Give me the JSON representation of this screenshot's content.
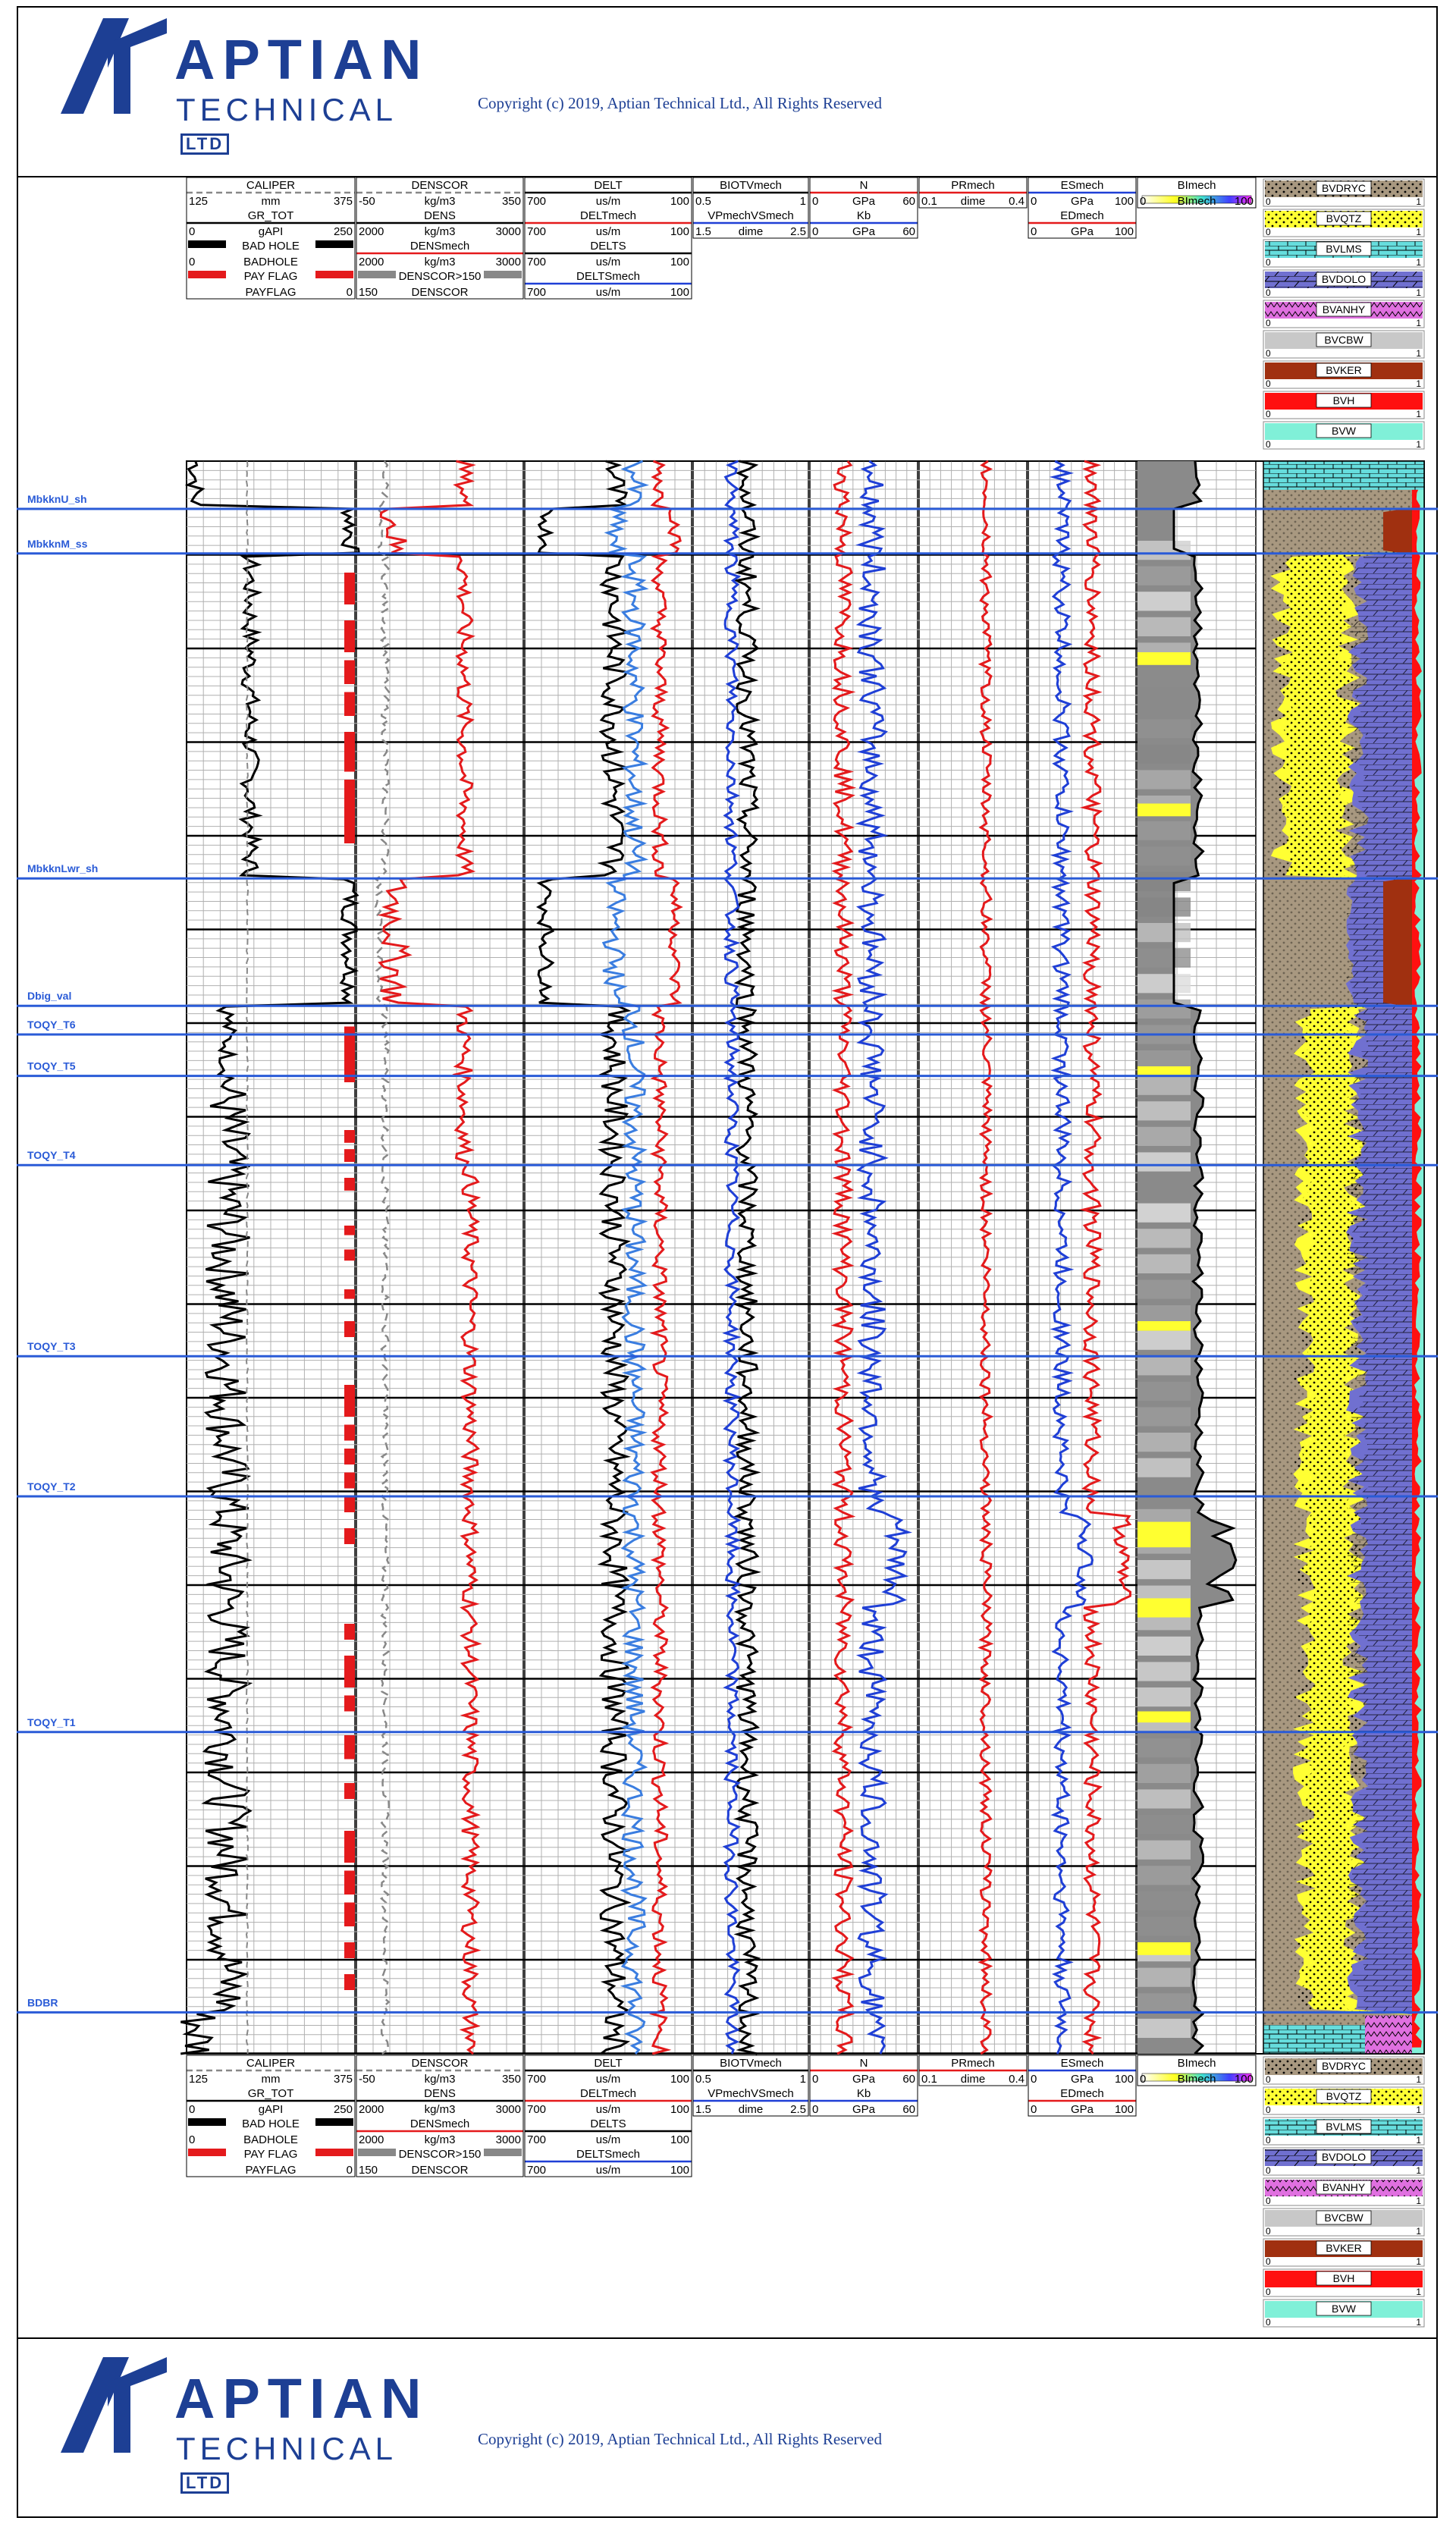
{
  "header": {
    "logo_word": "APTIAN",
    "logo_sub": "TECHNICAL",
    "logo_ltd": "LTD",
    "copyright": "Copyright (c) 2019, Aptian Technical Ltd., All Rights Reserved"
  },
  "footer": {
    "logo_word": "APTIAN",
    "logo_sub": "TECHNICAL",
    "logo_ltd": "LTD",
    "copyright": "Copyright (c) 2019, Aptian Technical Ltd., All Rights Reserved"
  },
  "colors": {
    "brand": "#1d3f94",
    "grid": "#b0b0b0",
    "grid_major": "#000000",
    "gr": "#000000",
    "red": "#e41a1c",
    "blue": "#1f3fd6",
    "lightblue": "#3a7de0",
    "grey_dash": "#888888",
    "pay": "#e41a1c",
    "formation": "#2a5bd7",
    "dryclay": "#a89880",
    "quartz": "#ffff33",
    "limestone": "#66dddd",
    "dolomite": "#7070d0",
    "anhydrite": "#e070e0",
    "cbw": "#c8c8c8",
    "kerogen": "#a03010",
    "hydrocarbon": "#ff1010",
    "water": "#80f0d8"
  },
  "chart_data": {
    "type": "line",
    "title": "",
    "depth_scale": "relative depth index 0-100 (top to bottom of plotted interval)",
    "tracks": [
      {
        "name": "gr-track",
        "curves": [
          {
            "name": "CALIPER",
            "unit": "mm",
            "min": "125",
            "max": "375",
            "style": "dashed",
            "color_key": "grey_dash"
          },
          {
            "name": "GR_TOT",
            "unit": "gAPI",
            "min": "0",
            "max": "250",
            "style": "solid",
            "color_key": "gr"
          },
          {
            "name": "BAD HOLE",
            "unit": "BADHOLE",
            "min": "0",
            "max": "",
            "style": "fill",
            "color_key": "gr"
          },
          {
            "name": "PAY FLAG",
            "unit": "PAYFLAG",
            "min": "",
            "max": "0",
            "style": "fill",
            "color_key": "pay"
          }
        ]
      },
      {
        "name": "density-track",
        "curves": [
          {
            "name": "DENSCOR",
            "unit": "kg/m3",
            "min": "-50",
            "max": "350",
            "style": "dashed",
            "color_key": "grey_dash"
          },
          {
            "name": "DENS",
            "unit": "kg/m3",
            "min": "2000",
            "max": "3000",
            "style": "solid",
            "color_key": "gr"
          },
          {
            "name": "DENSmech",
            "unit": "kg/m3",
            "min": "2000",
            "max": "3000",
            "style": "solid",
            "color_key": "red"
          },
          {
            "name": "DENSCOR>150",
            "unit": "DENSCOR",
            "min": "150",
            "max": "",
            "style": "fill",
            "color_key": "grey_dash"
          }
        ]
      },
      {
        "name": "sonic-track",
        "curves": [
          {
            "name": "DELT",
            "unit": "us/m",
            "min": "700",
            "max": "100",
            "style": "solid",
            "color_key": "gr"
          },
          {
            "name": "DELTmech",
            "unit": "us/m",
            "min": "700",
            "max": "100",
            "style": "solid",
            "color_key": "red"
          },
          {
            "name": "DELTS",
            "unit": "us/m",
            "min": "700",
            "max": "100",
            "style": "solid",
            "color_key": "gr"
          },
          {
            "name": "DELTSmech",
            "unit": "us/m",
            "min": "700",
            "max": "100",
            "style": "solid",
            "color_key": "blue"
          }
        ]
      },
      {
        "name": "biot-track",
        "curves": [
          {
            "name": "BIOTVmech",
            "unit": "",
            "min": "0.5",
            "max": "1",
            "style": "solid",
            "color_key": "gr"
          },
          {
            "name": "VPmechVSmech",
            "unit": "dime",
            "min": "1.5",
            "max": "2.5",
            "style": "solid",
            "color_key": "blue"
          }
        ]
      },
      {
        "name": "modulus-track",
        "curves": [
          {
            "name": "N",
            "unit": "GPa",
            "min": "0",
            "max": "60",
            "style": "solid",
            "color_key": "red"
          },
          {
            "name": "Kb",
            "unit": "GPa",
            "min": "0",
            "max": "60",
            "style": "solid",
            "color_key": "blue"
          }
        ]
      },
      {
        "name": "poisson-track",
        "curves": [
          {
            "name": "PRmech",
            "unit": "dime",
            "min": "0.1",
            "max": "0.4",
            "style": "solid",
            "color_key": "red"
          }
        ]
      },
      {
        "name": "youngs-track",
        "curves": [
          {
            "name": "ESmech",
            "unit": "GPa",
            "min": "0",
            "max": "100",
            "style": "solid",
            "color_key": "blue"
          },
          {
            "name": "EDmech",
            "unit": "GPa",
            "min": "0",
            "max": "100",
            "style": "solid",
            "color_key": "red"
          }
        ]
      },
      {
        "name": "brittleness-track",
        "curves": [
          {
            "name": "BImech",
            "unit": "BImech",
            "min": "0",
            "max": "100",
            "style": "colorfill",
            "color_key": "gr"
          }
        ]
      }
    ],
    "volume_legend": [
      {
        "name": "BVDRYC",
        "color_key": "dryclay",
        "min": "0",
        "max": "1",
        "pattern": "dots"
      },
      {
        "name": "BVQTZ",
        "color_key": "quartz",
        "min": "0",
        "max": "1",
        "pattern": "dots"
      },
      {
        "name": "BVLMS",
        "color_key": "limestone",
        "min": "0",
        "max": "1",
        "pattern": "brick"
      },
      {
        "name": "BVDOLO",
        "color_key": "dolomite",
        "min": "0",
        "max": "1",
        "pattern": "slant"
      },
      {
        "name": "BVANHY",
        "color_key": "anhydrite",
        "min": "0",
        "max": "1",
        "pattern": "zigzag"
      },
      {
        "name": "BVCBW",
        "color_key": "cbw",
        "min": "0",
        "max": "1",
        "pattern": "none"
      },
      {
        "name": "BVKER",
        "color_key": "kerogen",
        "min": "0",
        "max": "1",
        "pattern": "none"
      },
      {
        "name": "BVH",
        "color_key": "hydrocarbon",
        "min": "0",
        "max": "1",
        "pattern": "none"
      },
      {
        "name": "BVW",
        "color_key": "water",
        "min": "0",
        "max": "1",
        "pattern": "none"
      }
    ],
    "formation_tops": [
      {
        "name": "MbkknU_sh",
        "depth": 3.0
      },
      {
        "name": "MbkknM_ss",
        "depth": 5.8
      },
      {
        "name": "MbkknLwr_sh",
        "depth": 26.2
      },
      {
        "name": "Dbig_val",
        "depth": 34.2
      },
      {
        "name": "TOQY_T6",
        "depth": 36.0
      },
      {
        "name": "TOQY_T5",
        "depth": 38.6
      },
      {
        "name": "TOQY_T4",
        "depth": 44.2
      },
      {
        "name": "TOQY_T3",
        "depth": 56.2
      },
      {
        "name": "TOQY_T2",
        "depth": 65.0
      },
      {
        "name": "TOQY_T1",
        "depth": 79.8
      },
      {
        "name": "BDBR",
        "depth": 97.4
      }
    ],
    "pay_flag_intervals": [
      [
        7,
        9
      ],
      [
        10,
        12
      ],
      [
        12.5,
        14
      ],
      [
        14.5,
        16
      ],
      [
        17,
        19.5
      ],
      [
        20,
        24
      ],
      [
        35.5,
        39
      ],
      [
        42,
        42.8
      ],
      [
        43.2,
        44
      ],
      [
        45,
        45.8
      ],
      [
        48,
        48.6
      ],
      [
        49.5,
        50.2
      ],
      [
        52,
        52.6
      ],
      [
        54,
        55
      ],
      [
        58,
        60
      ],
      [
        60.5,
        61.5
      ],
      [
        62,
        63
      ],
      [
        63.5,
        64.5
      ],
      [
        65,
        66
      ],
      [
        67,
        68
      ],
      [
        73,
        74
      ],
      [
        75,
        77
      ],
      [
        77.5,
        78.5
      ],
      [
        80,
        81.5
      ],
      [
        83,
        84
      ],
      [
        86,
        88
      ],
      [
        88.5,
        90
      ],
      [
        90.5,
        92
      ],
      [
        93,
        94
      ],
      [
        95,
        96
      ]
    ]
  }
}
